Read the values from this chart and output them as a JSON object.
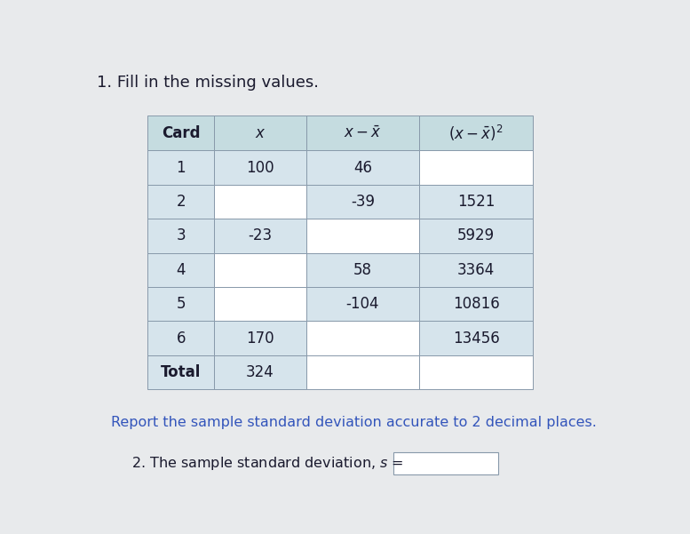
{
  "title": "1. Fill in the missing values.",
  "subtitle": "Report the sample standard deviation accurate to 2 decimal places.",
  "bottom_label": "2. The sample standard deviation,",
  "bg_color": "#e8eaec",
  "header_bg": "#c5dce0",
  "cell_bg_filled": "#d6e4ec",
  "cell_bg_empty": "#f5f6f8",
  "cell_white": "#ffffff",
  "rows": [
    {
      "card": "1",
      "x": "100",
      "dev": "46",
      "dev2": "",
      "x_empty": false,
      "dev_empty": false,
      "dev2_empty": true
    },
    {
      "card": "2",
      "x": "",
      "dev": "-39",
      "dev2": "1521",
      "x_empty": true,
      "dev_empty": false,
      "dev2_empty": false
    },
    {
      "card": "3",
      "x": "-23",
      "dev": "",
      "dev2": "5929",
      "x_empty": false,
      "dev_empty": true,
      "dev2_empty": false
    },
    {
      "card": "4",
      "x": "",
      "dev": "58",
      "dev2": "3364",
      "x_empty": true,
      "dev_empty": false,
      "dev2_empty": false
    },
    {
      "card": "5",
      "x": "",
      "dev": "-104",
      "dev2": "10816",
      "x_empty": true,
      "dev_empty": false,
      "dev2_empty": false
    },
    {
      "card": "6",
      "x": "170",
      "dev": "",
      "dev2": "13456",
      "x_empty": false,
      "dev_empty": true,
      "dev2_empty": false
    },
    {
      "card": "Total",
      "x": "324",
      "dev": "",
      "dev2": "",
      "x_empty": false,
      "dev_empty": true,
      "dev2_empty": true
    }
  ],
  "text_color": "#1a1a2e",
  "border_color": "#8899aa",
  "blue_text_color": "#3355bb",
  "title_fontsize": 13,
  "cell_fontsize": 12,
  "header_fontsize": 12
}
